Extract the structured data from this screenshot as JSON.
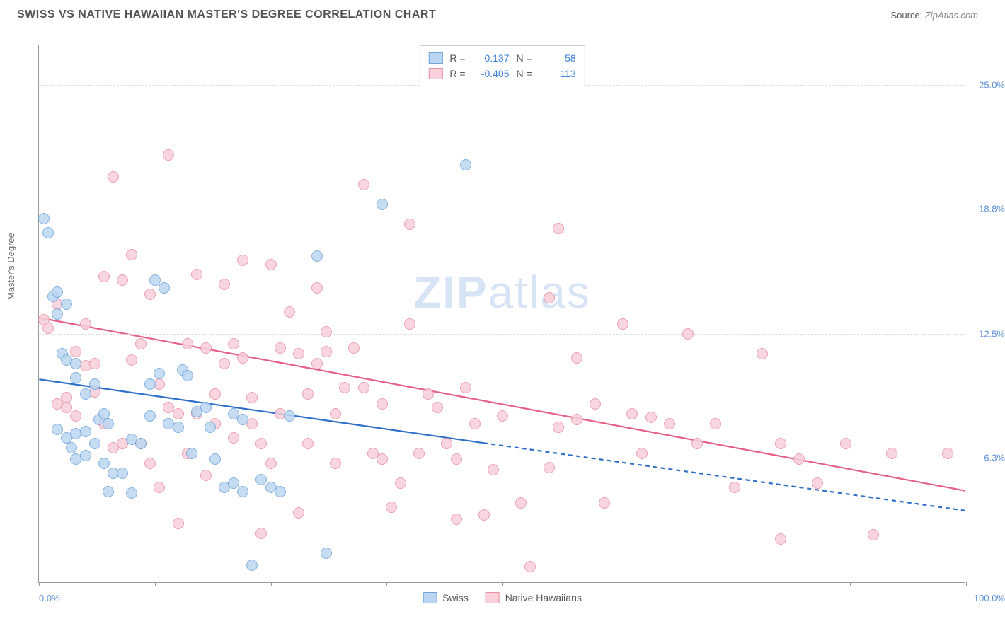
{
  "title": "SWISS VS NATIVE HAWAIIAN MASTER'S DEGREE CORRELATION CHART",
  "source_prefix": "Source: ",
  "source_site": "ZipAtlas.com",
  "watermark_bold": "ZIP",
  "watermark_rest": "atlas",
  "ylabel": "Master's Degree",
  "chart": {
    "type": "scatter",
    "xlim": [
      0,
      100
    ],
    "ylim": [
      0,
      27
    ],
    "yticks": [
      {
        "v": 6.3,
        "label": "6.3%"
      },
      {
        "v": 12.5,
        "label": "12.5%"
      },
      {
        "v": 18.8,
        "label": "18.8%"
      },
      {
        "v": 25.0,
        "label": "25.0%"
      }
    ],
    "xtick_positions": [
      0,
      12.5,
      25,
      37.5,
      50,
      62.5,
      75,
      87.5,
      100
    ],
    "xtick_labels": {
      "0": "0.0%",
      "100": "100.0%"
    },
    "background_color": "#ffffff",
    "grid_color": "#dddddd",
    "marker_radius": 8,
    "marker_stroke_width": 1.4,
    "trend_line_width": 2.2
  },
  "series": {
    "swiss": {
      "label": "Swiss",
      "fill": "#bcd6f2",
      "stroke": "#6ea3dc",
      "trend_color": "#2f6fc9",
      "R": "-0.137",
      "N": "58",
      "trend": {
        "x1": 0,
        "y1": 10.2,
        "x2_solid": 48,
        "y2_solid": 7.0,
        "x2": 100,
        "y2": 3.6
      },
      "points": [
        [
          0.5,
          18.3
        ],
        [
          1,
          17.6
        ],
        [
          1.5,
          14.4
        ],
        [
          2,
          14.6
        ],
        [
          2,
          13.5
        ],
        [
          3,
          14.0
        ],
        [
          2.5,
          11.5
        ],
        [
          3,
          11.2
        ],
        [
          4,
          11.0
        ],
        [
          2,
          7.7
        ],
        [
          3,
          7.3
        ],
        [
          4,
          7.5
        ],
        [
          5,
          7.6
        ],
        [
          3.5,
          6.8
        ],
        [
          4,
          6.2
        ],
        [
          5,
          6.4
        ],
        [
          6,
          7.0
        ],
        [
          6.5,
          8.2
        ],
        [
          7,
          8.5
        ],
        [
          7.5,
          8.0
        ],
        [
          5,
          9.5
        ],
        [
          6,
          10.0
        ],
        [
          4,
          10.3
        ],
        [
          7,
          6.0
        ],
        [
          8,
          5.5
        ],
        [
          9,
          5.5
        ],
        [
          7.5,
          4.6
        ],
        [
          10,
          4.5
        ],
        [
          10,
          7.2
        ],
        [
          11,
          7.0
        ],
        [
          12,
          8.4
        ],
        [
          12,
          10.0
        ],
        [
          13,
          10.5
        ],
        [
          13.5,
          14.8
        ],
        [
          12.5,
          15.2
        ],
        [
          14,
          8.0
        ],
        [
          15,
          7.8
        ],
        [
          15.5,
          10.7
        ],
        [
          16,
          10.4
        ],
        [
          16.5,
          6.5
        ],
        [
          17,
          8.6
        ],
        [
          18,
          8.8
        ],
        [
          18.5,
          7.8
        ],
        [
          19,
          6.2
        ],
        [
          20,
          4.8
        ],
        [
          21,
          5.0
        ],
        [
          21,
          8.5
        ],
        [
          22,
          8.2
        ],
        [
          22,
          4.6
        ],
        [
          23,
          0.9
        ],
        [
          24,
          5.2
        ],
        [
          25,
          4.8
        ],
        [
          26,
          4.6
        ],
        [
          27,
          8.4
        ],
        [
          30,
          16.4
        ],
        [
          31,
          1.5
        ],
        [
          37,
          19.0
        ],
        [
          46,
          21.0
        ]
      ]
    },
    "hawaiian": {
      "label": "Native Hawaiians",
      "fill": "#f9d0da",
      "stroke": "#e890a5",
      "trend_color": "#e65f85",
      "R": "-0.405",
      "N": "113",
      "trend": {
        "x1": 0,
        "y1": 13.3,
        "x2_solid": 100,
        "y2_solid": 4.6,
        "x2": 100,
        "y2": 4.6
      },
      "points": [
        [
          0.5,
          13.2
        ],
        [
          1,
          12.8
        ],
        [
          2,
          14.0
        ],
        [
          2,
          9.0
        ],
        [
          3,
          9.3
        ],
        [
          3,
          8.8
        ],
        [
          4,
          8.4
        ],
        [
          4,
          11.6
        ],
        [
          5,
          10.9
        ],
        [
          5,
          13.0
        ],
        [
          6,
          11.0
        ],
        [
          6,
          9.6
        ],
        [
          7,
          15.4
        ],
        [
          7,
          8.0
        ],
        [
          8,
          20.4
        ],
        [
          8,
          6.8
        ],
        [
          9,
          7.0
        ],
        [
          9,
          15.2
        ],
        [
          10,
          16.5
        ],
        [
          10,
          11.2
        ],
        [
          11,
          12.0
        ],
        [
          11,
          7.0
        ],
        [
          12,
          6.0
        ],
        [
          12,
          14.5
        ],
        [
          13,
          10.0
        ],
        [
          13,
          4.8
        ],
        [
          14,
          21.5
        ],
        [
          14,
          8.8
        ],
        [
          15,
          8.5
        ],
        [
          15,
          3.0
        ],
        [
          16,
          12.0
        ],
        [
          16,
          6.5
        ],
        [
          17,
          8.5
        ],
        [
          17,
          15.5
        ],
        [
          18,
          11.8
        ],
        [
          18,
          5.4
        ],
        [
          19,
          8.0
        ],
        [
          19,
          9.5
        ],
        [
          20,
          15.0
        ],
        [
          20,
          11.0
        ],
        [
          21,
          12.0
        ],
        [
          21,
          7.3
        ],
        [
          22,
          11.3
        ],
        [
          22,
          16.2
        ],
        [
          23,
          8.0
        ],
        [
          23,
          9.3
        ],
        [
          24,
          2.5
        ],
        [
          24,
          7.0
        ],
        [
          25,
          6.0
        ],
        [
          25,
          16.0
        ],
        [
          26,
          8.5
        ],
        [
          26,
          11.8
        ],
        [
          27,
          13.6
        ],
        [
          28,
          11.5
        ],
        [
          28,
          3.5
        ],
        [
          29,
          9.5
        ],
        [
          29,
          7.0
        ],
        [
          30,
          14.8
        ],
        [
          30,
          11.0
        ],
        [
          31,
          12.6
        ],
        [
          31,
          11.6
        ],
        [
          32,
          8.5
        ],
        [
          32,
          6.0
        ],
        [
          33,
          9.8
        ],
        [
          34,
          11.8
        ],
        [
          35,
          9.8
        ],
        [
          35,
          20.0
        ],
        [
          36,
          6.5
        ],
        [
          37,
          6.2
        ],
        [
          37,
          9.0
        ],
        [
          38,
          3.8
        ],
        [
          39,
          5.0
        ],
        [
          40,
          13.0
        ],
        [
          40,
          18.0
        ],
        [
          41,
          6.5
        ],
        [
          42,
          9.5
        ],
        [
          43,
          8.8
        ],
        [
          44,
          7.0
        ],
        [
          45,
          6.2
        ],
        [
          45,
          3.2
        ],
        [
          46,
          9.8
        ],
        [
          47,
          8.0
        ],
        [
          48,
          3.4
        ],
        [
          49,
          5.7
        ],
        [
          50,
          8.4
        ],
        [
          52,
          4.0
        ],
        [
          53,
          0.8
        ],
        [
          55,
          14.3
        ],
        [
          55,
          5.8
        ],
        [
          56,
          7.8
        ],
        [
          58,
          8.2
        ],
        [
          58,
          11.3
        ],
        [
          60,
          9.0
        ],
        [
          61,
          4.0
        ],
        [
          63,
          13.0
        ],
        [
          64,
          8.5
        ],
        [
          65,
          6.5
        ],
        [
          66,
          8.3
        ],
        [
          68,
          8.0
        ],
        [
          70,
          12.5
        ],
        [
          71,
          7.0
        ],
        [
          73,
          8.0
        ],
        [
          75,
          4.8
        ],
        [
          78,
          11.5
        ],
        [
          80,
          7.0
        ],
        [
          82,
          6.2
        ],
        [
          84,
          5.0
        ],
        [
          87,
          7.0
        ],
        [
          90,
          2.4
        ],
        [
          92,
          6.5
        ],
        [
          98,
          6.5
        ],
        [
          80,
          2.2
        ],
        [
          56,
          17.8
        ]
      ]
    }
  },
  "stats_labels": {
    "R": "R =",
    "N": "N ="
  }
}
